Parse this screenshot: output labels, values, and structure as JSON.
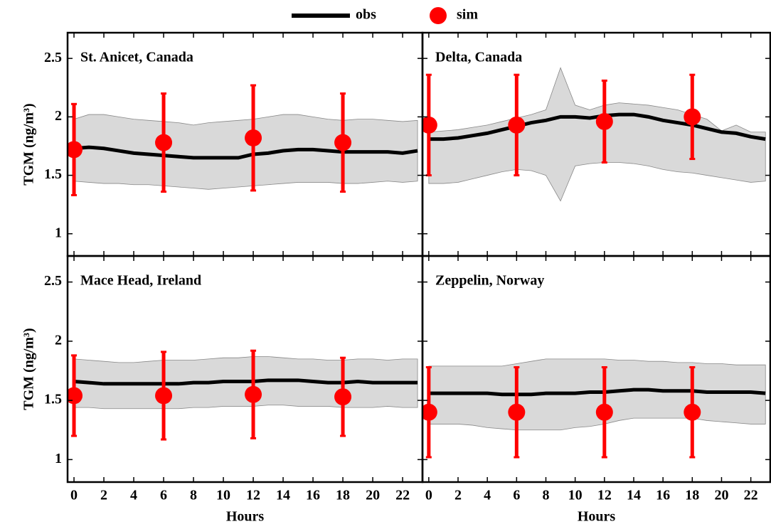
{
  "chart_data": {
    "type": "line",
    "xlabel": "Hours",
    "ylabel": "TGM (ng/m³)",
    "xlim": [
      -0.43,
      23.33
    ],
    "ylim": [
      0.81,
      2.72
    ],
    "xticks": [
      0,
      2,
      4,
      6,
      8,
      10,
      12,
      14,
      16,
      18,
      20,
      22
    ],
    "yticks": [
      1,
      1.5,
      2,
      2.5
    ],
    "legend": [
      {
        "name": "obs",
        "color": "#000000"
      },
      {
        "name": "sim",
        "color": "#ff0000"
      }
    ],
    "band_color": "#d9d9d9",
    "x": [
      0,
      1,
      2,
      3,
      4,
      5,
      6,
      7,
      8,
      9,
      10,
      11,
      12,
      13,
      14,
      15,
      16,
      17,
      18,
      19,
      20,
      21,
      22,
      23
    ],
    "sim_x": [
      0,
      6,
      12,
      18
    ],
    "panels": [
      {
        "title": "St. Anicet, Canada",
        "obs": [
          1.73,
          1.74,
          1.73,
          1.71,
          1.69,
          1.68,
          1.67,
          1.66,
          1.65,
          1.65,
          1.65,
          1.65,
          1.68,
          1.69,
          1.71,
          1.72,
          1.72,
          1.71,
          1.7,
          1.7,
          1.7,
          1.7,
          1.69,
          1.71
        ],
        "upper": [
          1.98,
          2.02,
          2.02,
          2.0,
          1.98,
          1.97,
          1.96,
          1.95,
          1.93,
          1.95,
          1.96,
          1.97,
          1.98,
          2.0,
          2.02,
          2.02,
          2.0,
          1.98,
          1.97,
          1.98,
          1.98,
          1.97,
          1.96,
          1.97
        ],
        "lower": [
          1.45,
          1.44,
          1.43,
          1.43,
          1.42,
          1.42,
          1.41,
          1.4,
          1.39,
          1.38,
          1.39,
          1.4,
          1.41,
          1.42,
          1.43,
          1.44,
          1.44,
          1.44,
          1.43,
          1.43,
          1.44,
          1.45,
          1.44,
          1.45
        ],
        "sim": [
          1.72,
          1.78,
          1.82,
          1.78
        ],
        "sim_errors": [
          0.39,
          0.42,
          0.45,
          0.42
        ]
      },
      {
        "title": "Delta, Canada",
        "obs": [
          1.81,
          1.81,
          1.82,
          1.84,
          1.86,
          1.89,
          1.92,
          1.95,
          1.97,
          2.0,
          2.0,
          1.99,
          2.01,
          2.02,
          2.02,
          2.0,
          1.97,
          1.95,
          1.93,
          1.9,
          1.87,
          1.86,
          1.83,
          1.81
        ],
        "upper": [
          1.87,
          1.88,
          1.89,
          1.91,
          1.93,
          1.96,
          1.99,
          2.02,
          2.06,
          2.42,
          2.1,
          2.06,
          2.1,
          2.12,
          2.11,
          2.1,
          2.08,
          2.06,
          2.02,
          1.98,
          1.88,
          1.93,
          1.87,
          1.87
        ],
        "lower": [
          1.43,
          1.43,
          1.44,
          1.47,
          1.5,
          1.53,
          1.55,
          1.54,
          1.5,
          1.28,
          1.58,
          1.6,
          1.61,
          1.61,
          1.6,
          1.58,
          1.55,
          1.53,
          1.52,
          1.5,
          1.48,
          1.46,
          1.44,
          1.45
        ],
        "sim": [
          1.93,
          1.93,
          1.96,
          2.0
        ],
        "sim_errors": [
          0.43,
          0.43,
          0.35,
          0.36
        ]
      },
      {
        "title": "Mace Head, Ireland",
        "obs": [
          1.66,
          1.65,
          1.64,
          1.64,
          1.64,
          1.64,
          1.64,
          1.64,
          1.65,
          1.65,
          1.66,
          1.66,
          1.66,
          1.67,
          1.67,
          1.67,
          1.66,
          1.65,
          1.65,
          1.66,
          1.65,
          1.65,
          1.65,
          1.65
        ],
        "upper": [
          1.85,
          1.84,
          1.83,
          1.82,
          1.82,
          1.83,
          1.84,
          1.84,
          1.84,
          1.85,
          1.86,
          1.86,
          1.87,
          1.87,
          1.86,
          1.85,
          1.85,
          1.84,
          1.84,
          1.85,
          1.85,
          1.84,
          1.85,
          1.85
        ],
        "lower": [
          1.44,
          1.44,
          1.43,
          1.43,
          1.43,
          1.43,
          1.43,
          1.43,
          1.44,
          1.44,
          1.45,
          1.45,
          1.45,
          1.46,
          1.46,
          1.45,
          1.45,
          1.45,
          1.44,
          1.44,
          1.44,
          1.45,
          1.44,
          1.44
        ],
        "sim": [
          1.54,
          1.54,
          1.55,
          1.53
        ],
        "sim_errors": [
          0.34,
          0.37,
          0.37,
          0.33
        ]
      },
      {
        "title": "Zeppelin, Norway",
        "obs": [
          1.56,
          1.56,
          1.56,
          1.56,
          1.56,
          1.55,
          1.55,
          1.55,
          1.56,
          1.56,
          1.56,
          1.57,
          1.57,
          1.58,
          1.59,
          1.59,
          1.58,
          1.58,
          1.58,
          1.57,
          1.57,
          1.57,
          1.57,
          1.56
        ],
        "upper": [
          1.79,
          1.79,
          1.79,
          1.79,
          1.79,
          1.79,
          1.81,
          1.83,
          1.85,
          1.85,
          1.85,
          1.85,
          1.85,
          1.84,
          1.84,
          1.83,
          1.83,
          1.82,
          1.82,
          1.81,
          1.81,
          1.8,
          1.8,
          1.8
        ],
        "lower": [
          1.3,
          1.3,
          1.3,
          1.29,
          1.27,
          1.26,
          1.25,
          1.25,
          1.25,
          1.25,
          1.27,
          1.28,
          1.3,
          1.33,
          1.35,
          1.35,
          1.35,
          1.35,
          1.35,
          1.33,
          1.32,
          1.31,
          1.3,
          1.3
        ],
        "sim": [
          1.4,
          1.4,
          1.4,
          1.4
        ],
        "sim_errors": [
          0.38,
          0.38,
          0.38,
          0.38
        ]
      }
    ]
  }
}
